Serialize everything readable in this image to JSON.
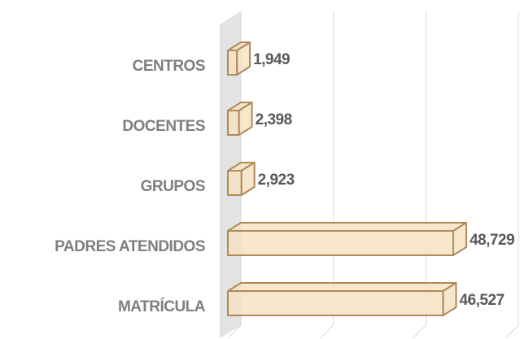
{
  "chart_data": {
    "type": "bar3d_horizontal",
    "categories": [
      "CENTROS",
      "DOCENTES",
      "GRUPOS",
      "PADRES ATENDIDOS",
      "MATRÍCULA"
    ],
    "values": [
      1949,
      2398,
      2923,
      48729,
      46527
    ],
    "value_labels": [
      "1,949",
      "2,398",
      "2,923",
      "48,729",
      "46,527"
    ],
    "color": "#f5e3c3",
    "edge_color": "#b08a5a",
    "xlim": [
      0,
      60000
    ],
    "xticks": [
      0,
      20000,
      40000,
      60000
    ],
    "grid": true
  }
}
